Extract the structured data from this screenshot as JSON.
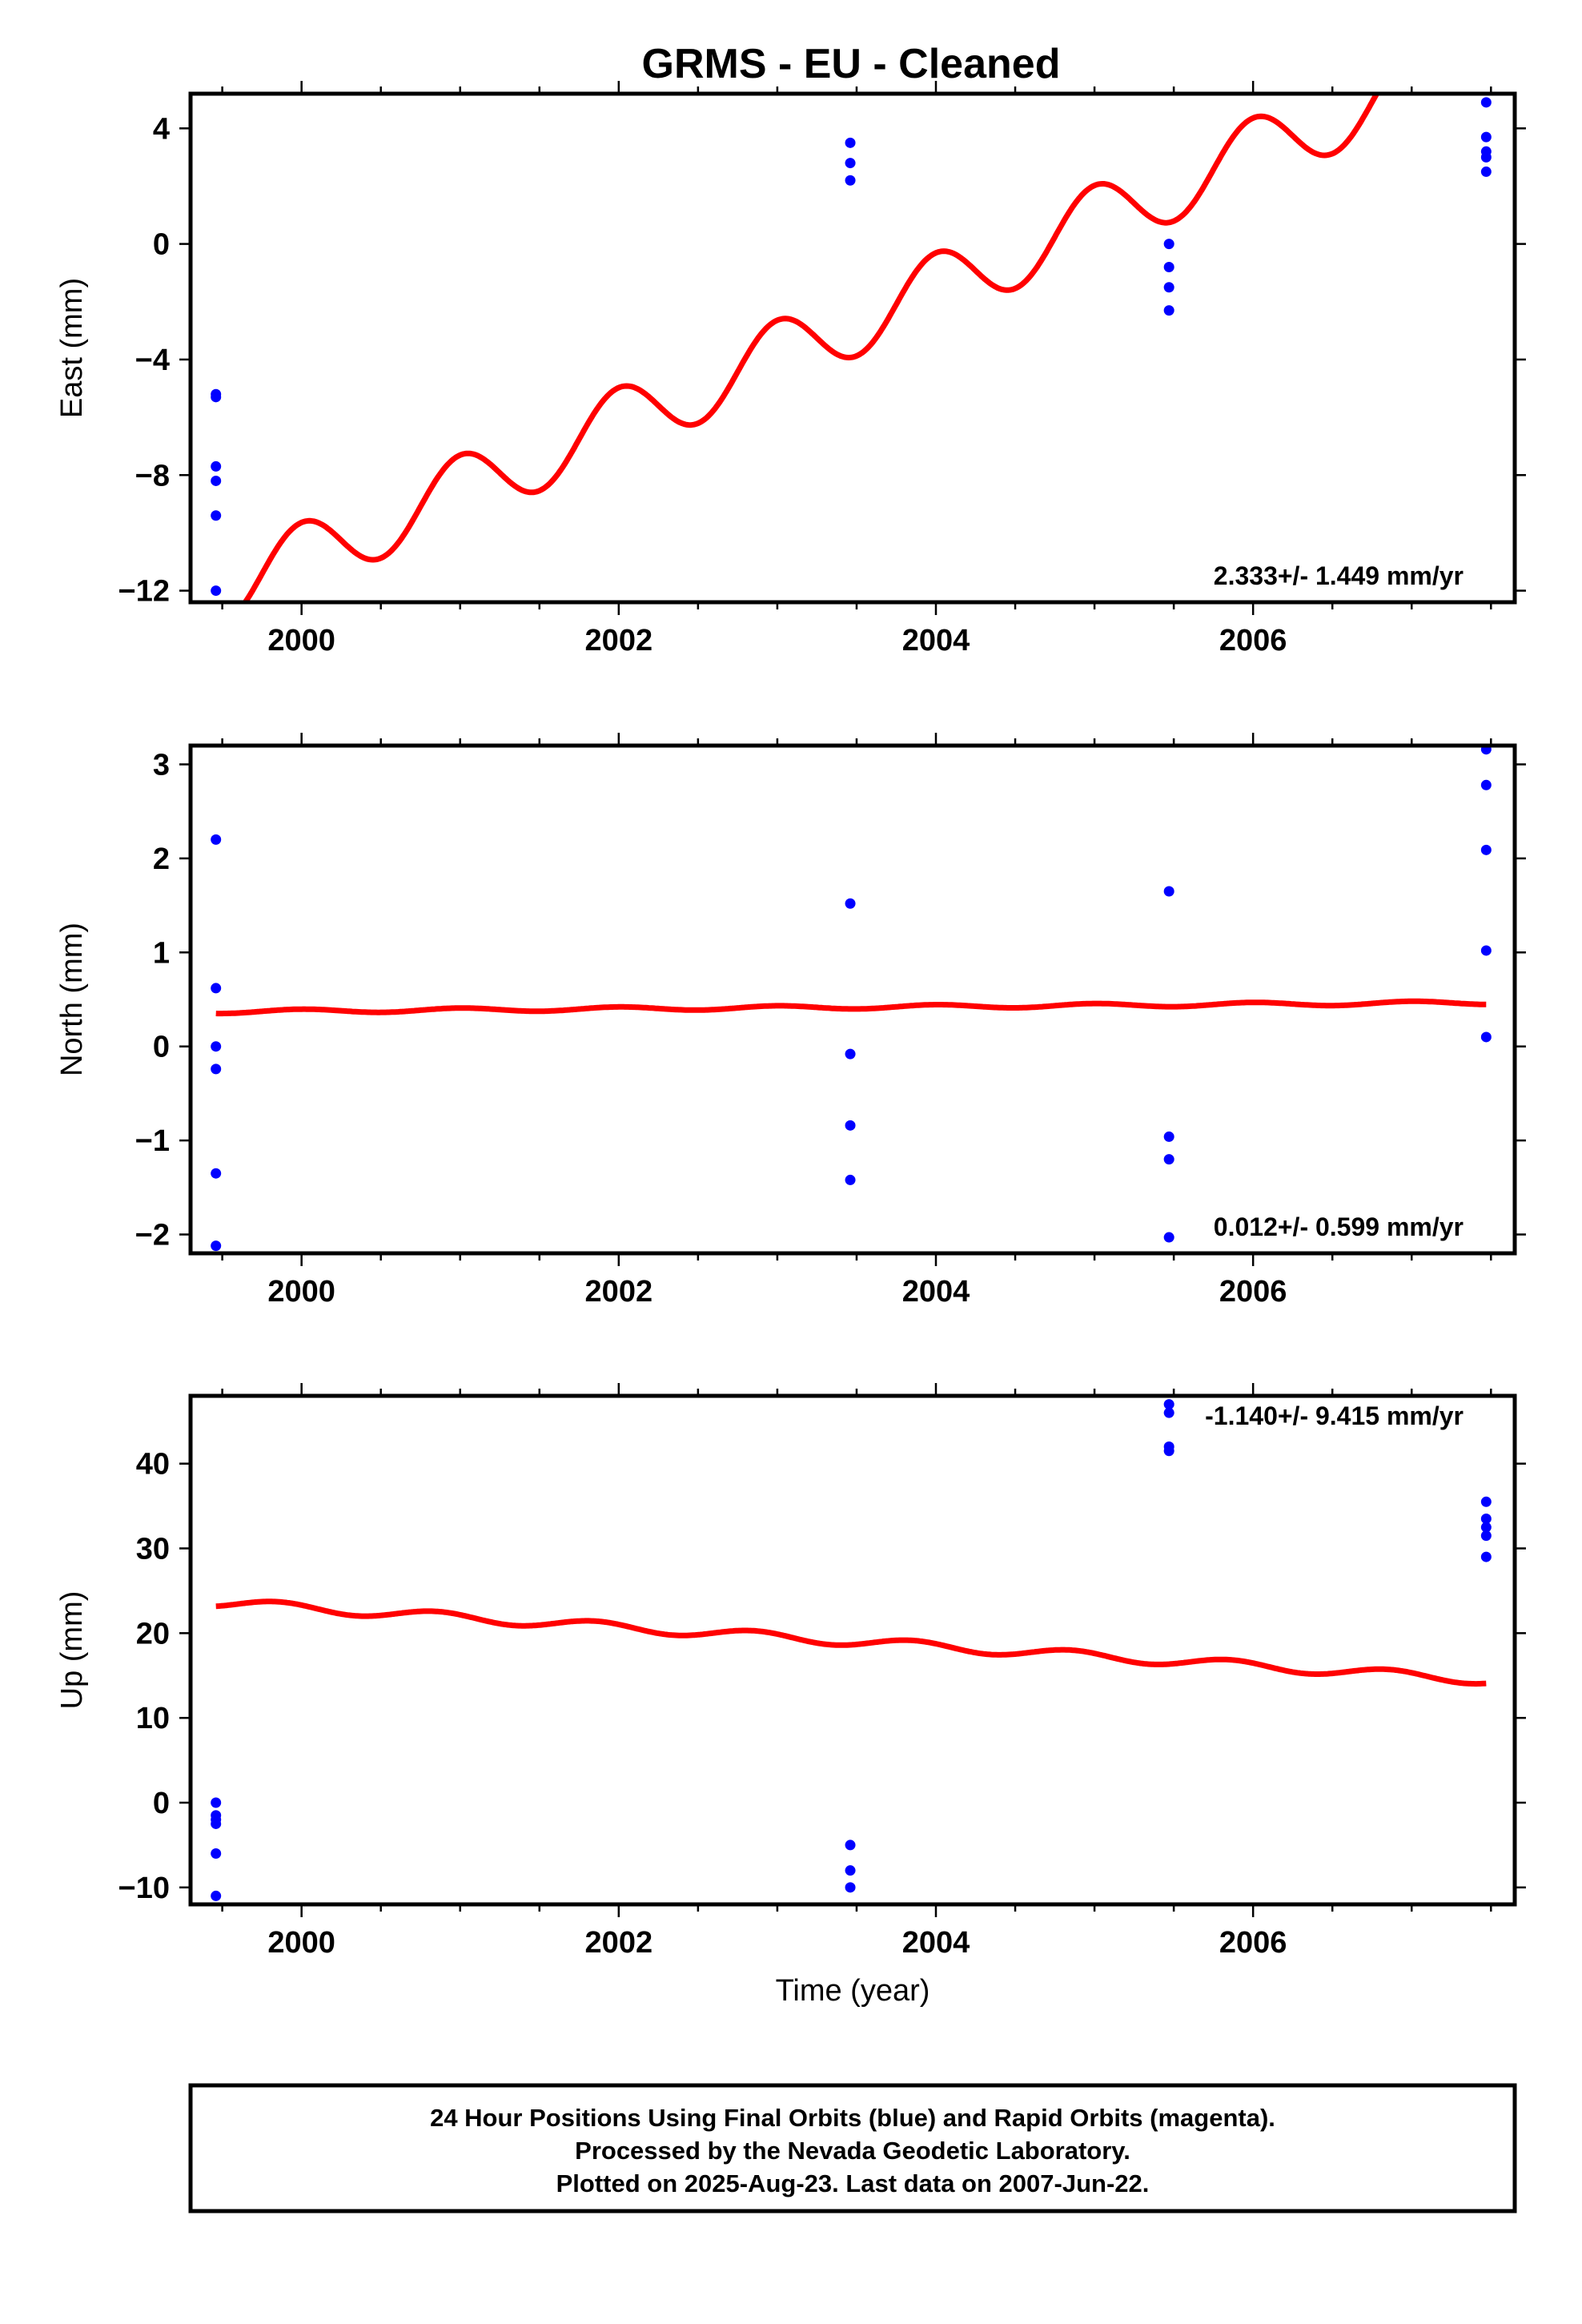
{
  "title": "GRMS  - EU - Cleaned",
  "colors": {
    "final_orbits": "#0000ff",
    "model": "#ff0000",
    "frame": "#000000"
  },
  "footer": [
    "24 Hour Positions Using Final Orbits (blue) and Rapid Orbits (magenta).",
    "Processed by the Nevada Geodetic Laboratory.",
    "Plotted on 2025-Aug-23. Last data on 2007-Jun-22."
  ],
  "chart_data": [
    {
      "type": "scatter",
      "ylabel": "East (mm)",
      "xlabel": "",
      "xlim": [
        1999.3,
        2007.65
      ],
      "ylim": [
        -12.4,
        5.2
      ],
      "xticks": [
        2000,
        2002,
        2004,
        2006
      ],
      "xtick_labels": [
        "2000",
        "2002",
        "2004",
        "2006"
      ],
      "yticks": [
        4,
        0,
        -4,
        -8,
        -12
      ],
      "ytick_labels": [
        "4",
        "0",
        "−4",
        "−8",
        "−12"
      ],
      "rate_label": "2.333+/- 1.449 mm/yr",
      "rate_position": "bottom-right",
      "grid": false,
      "points": [
        [
          1999.46,
          -5.2
        ],
        [
          1999.46,
          -5.3
        ],
        [
          1999.46,
          -7.7
        ],
        [
          1999.46,
          -8.2
        ],
        [
          1999.46,
          -9.4
        ],
        [
          1999.46,
          -12.0
        ],
        [
          2003.46,
          3.5
        ],
        [
          2003.46,
          2.8
        ],
        [
          2003.46,
          2.2
        ],
        [
          2005.47,
          0.0
        ],
        [
          2005.47,
          -0.8
        ],
        [
          2005.47,
          -1.5
        ],
        [
          2005.47,
          -2.3
        ],
        [
          2007.47,
          4.9
        ],
        [
          2007.47,
          3.7
        ],
        [
          2007.47,
          3.2
        ],
        [
          2007.47,
          3.0
        ],
        [
          2007.47,
          2.5
        ]
      ],
      "model": {
        "intercept_at_start": -12.1,
        "slope_per_year": 2.333,
        "annual_amplitude": 1.2,
        "phase_year": 1999.75,
        "x_start": 1999.46,
        "x_end": 2007.47
      }
    },
    {
      "type": "scatter",
      "ylabel": "North (mm)",
      "xlabel": "",
      "xlim": [
        1999.3,
        2007.65
      ],
      "ylim": [
        -2.2,
        3.2
      ],
      "xticks": [
        2000,
        2002,
        2004,
        2006
      ],
      "xtick_labels": [
        "2000",
        "2002",
        "2004",
        "2006"
      ],
      "yticks": [
        3,
        2,
        1,
        0,
        -1,
        -2
      ],
      "ytick_labels": [
        "3",
        "2",
        "1",
        "0",
        "−1",
        "−2"
      ],
      "rate_label": "0.012+/- 0.599 mm/yr",
      "rate_position": "bottom-right",
      "grid": false,
      "points": [
        [
          1999.46,
          2.2
        ],
        [
          1999.46,
          0.62
        ],
        [
          1999.46,
          0.0
        ],
        [
          1999.46,
          -0.24
        ],
        [
          1999.46,
          -1.35
        ],
        [
          1999.46,
          -2.12
        ],
        [
          2003.46,
          1.52
        ],
        [
          2003.46,
          -0.08
        ],
        [
          2003.46,
          -0.84
        ],
        [
          2003.46,
          -1.42
        ],
        [
          2005.47,
          1.65
        ],
        [
          2005.47,
          -0.96
        ],
        [
          2005.47,
          -1.2
        ],
        [
          2005.47,
          -2.03
        ],
        [
          2007.47,
          3.16
        ],
        [
          2007.47,
          2.78
        ],
        [
          2007.47,
          2.09
        ],
        [
          2007.47,
          1.02
        ],
        [
          2007.47,
          0.1
        ]
      ],
      "model": {
        "intercept_at_start": 0.37,
        "slope_per_year": 0.012,
        "annual_amplitude": 0.02,
        "phase_year": 1999.75,
        "x_start": 1999.46,
        "x_end": 2007.47
      }
    },
    {
      "type": "scatter",
      "ylabel": "Up (mm)",
      "xlabel": "Time (year)",
      "xlim": [
        1999.3,
        2007.65
      ],
      "ylim": [
        -12,
        48
      ],
      "xticks": [
        2000,
        2002,
        2004,
        2006
      ],
      "xtick_labels": [
        "2000",
        "2002",
        "2004",
        "2006"
      ],
      "yticks": [
        40,
        30,
        20,
        10,
        0,
        -10
      ],
      "ytick_labels": [
        "40",
        "30",
        "20",
        "10",
        "0",
        "−10"
      ],
      "rate_label": "-1.140+/- 9.415 mm/yr",
      "rate_position": "top-right",
      "grid": false,
      "points": [
        [
          1999.46,
          0.0
        ],
        [
          1999.46,
          -1.5
        ],
        [
          1999.46,
          -2.0
        ],
        [
          1999.46,
          -2.5
        ],
        [
          1999.46,
          -6.0
        ],
        [
          1999.46,
          -11.0
        ],
        [
          2003.46,
          -5.0
        ],
        [
          2003.46,
          -8.0
        ],
        [
          2003.46,
          -10.0
        ],
        [
          2005.47,
          47.0
        ],
        [
          2005.47,
          46.0
        ],
        [
          2005.47,
          42.0
        ],
        [
          2005.47,
          41.5
        ],
        [
          2007.47,
          35.5
        ],
        [
          2007.47,
          33.5
        ],
        [
          2007.47,
          32.5
        ],
        [
          2007.47,
          31.5
        ],
        [
          2007.47,
          29.0
        ]
      ],
      "model": {
        "intercept_at_start": 23.6,
        "slope_per_year": -1.14,
        "annual_amplitude": 0.55,
        "phase_year": 1999.6,
        "x_start": 1999.46,
        "x_end": 2007.47
      }
    }
  ]
}
